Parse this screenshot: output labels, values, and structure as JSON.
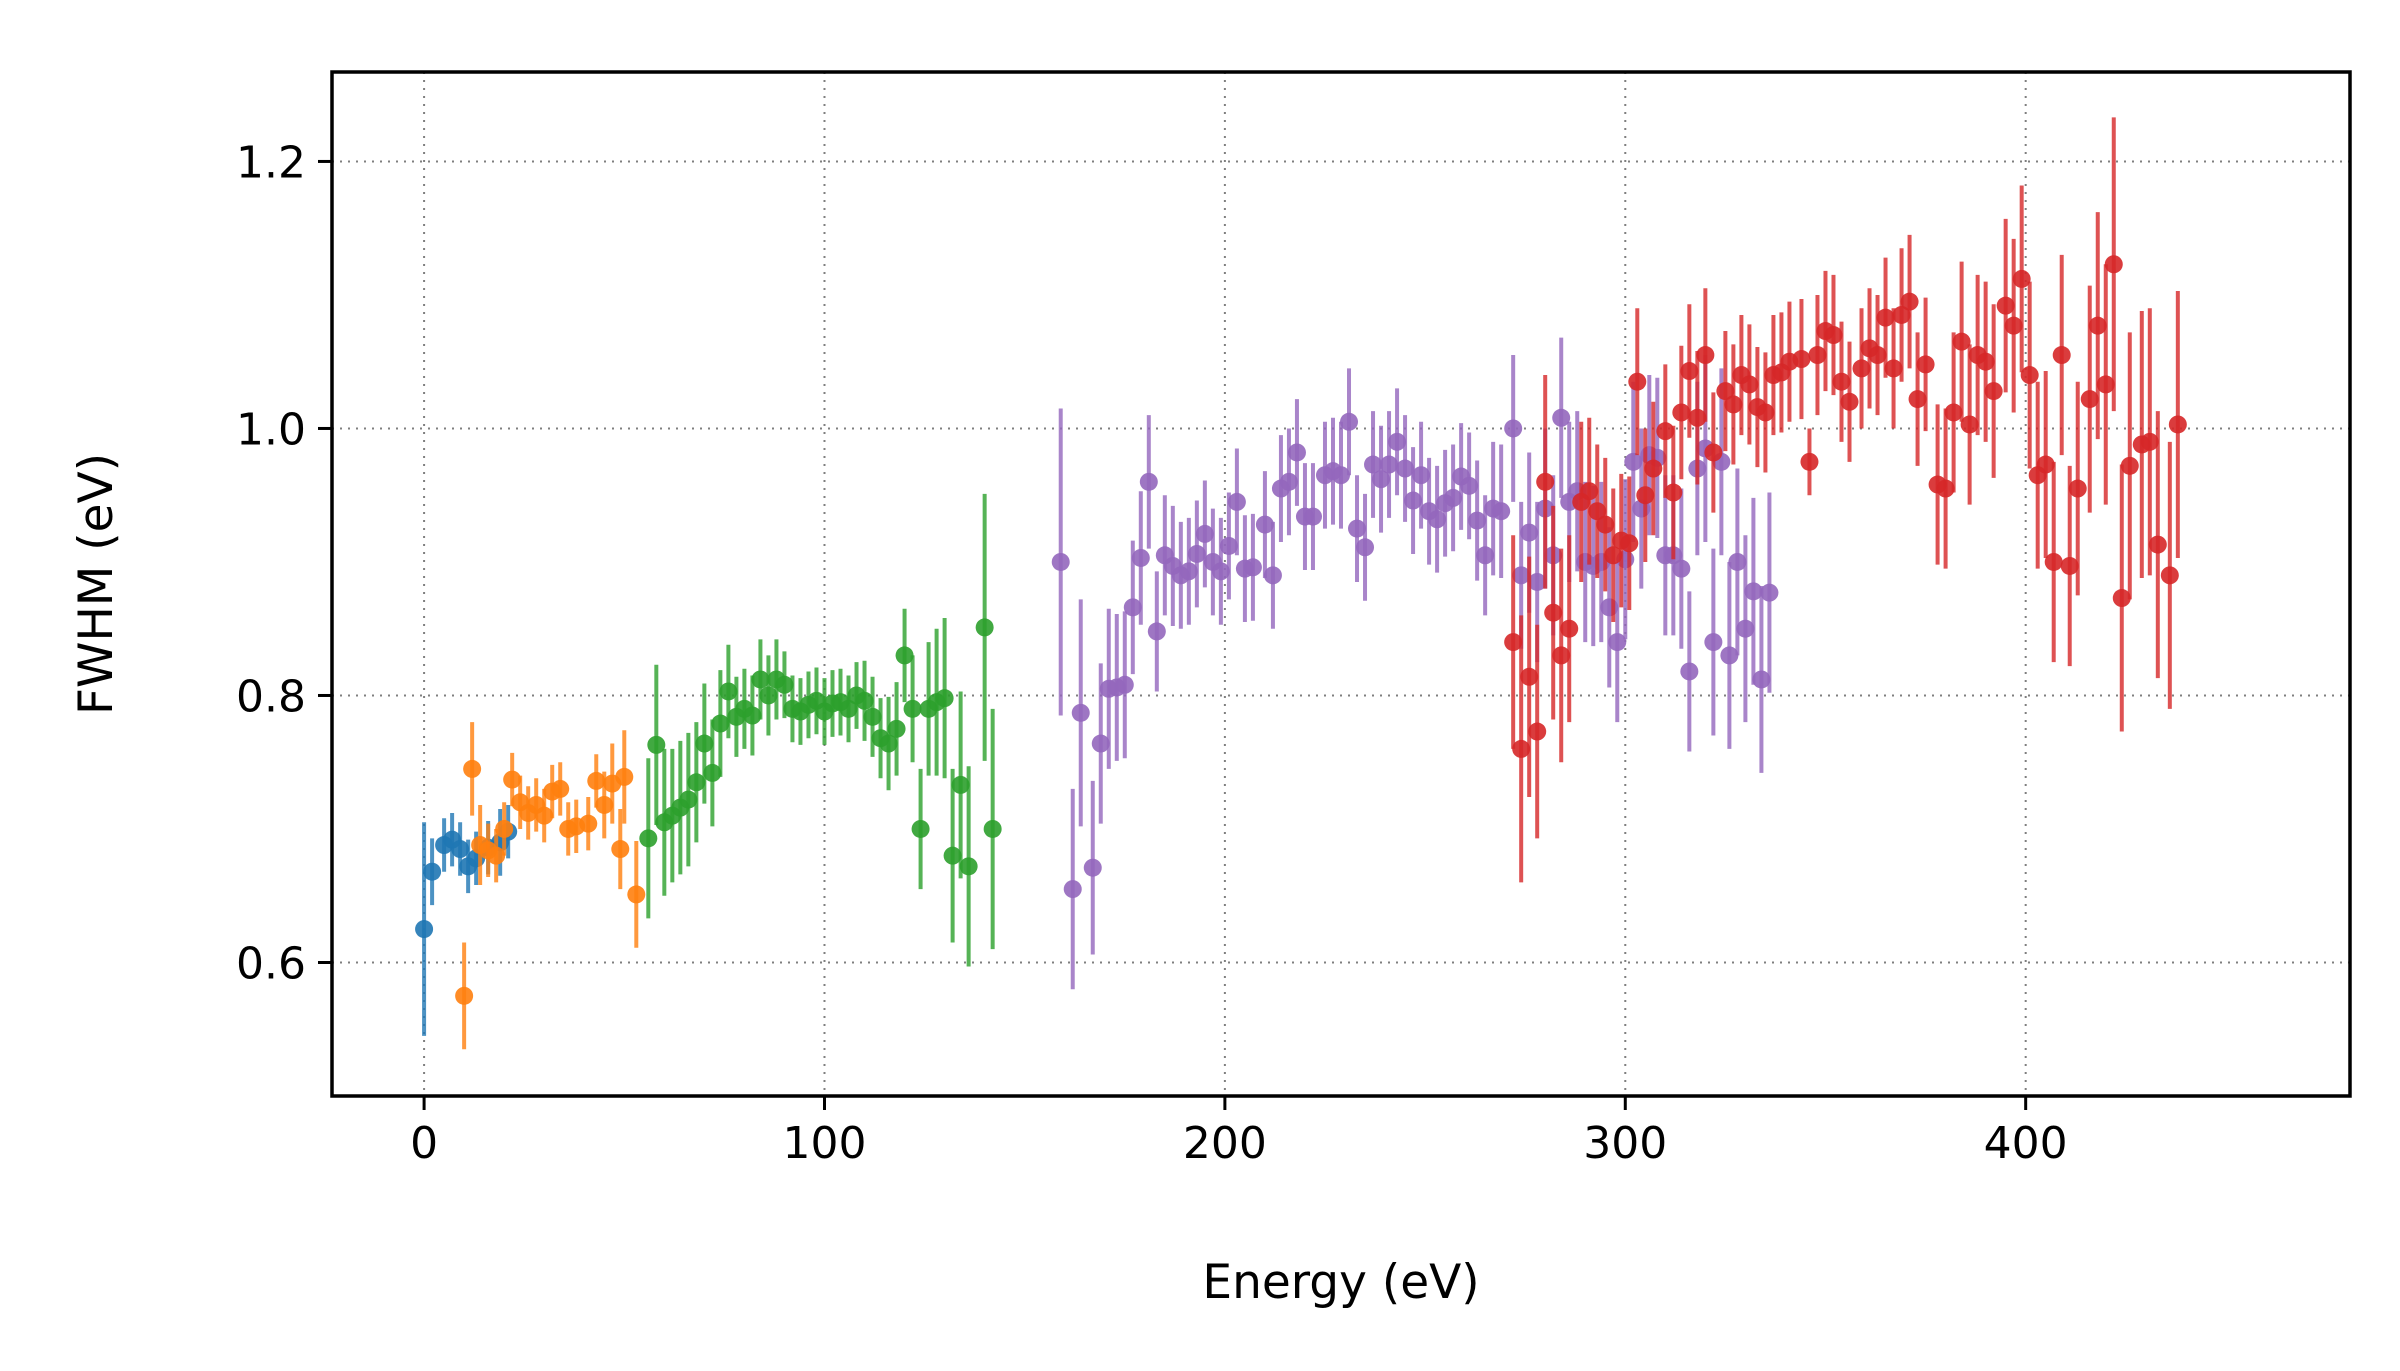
{
  "chart_data": {
    "type": "scatter",
    "title": "",
    "xlabel": "Energy (eV)",
    "ylabel": "FWHM (eV)",
    "xlim": [
      -23,
      481
    ],
    "ylim": [
      0.5,
      1.267
    ],
    "x_ticks": [
      0,
      100,
      200,
      300,
      400
    ],
    "y_ticks": [
      0.6,
      0.8,
      1.0,
      1.2
    ],
    "x_tick_labels": [
      "0",
      "100",
      "200",
      "300",
      "400"
    ],
    "y_tick_labels": [
      "0.6",
      "0.8",
      "1.0",
      "1.2"
    ],
    "grid": true,
    "series": [
      {
        "name": "series-1",
        "color": "#1f77b4",
        "points": [
          [
            0,
            0.625,
            0.08
          ],
          [
            2,
            0.668,
            0.025
          ],
          [
            5,
            0.688,
            0.02
          ],
          [
            7,
            0.692,
            0.02
          ],
          [
            9,
            0.685,
            0.02
          ],
          [
            11,
            0.672,
            0.02
          ],
          [
            13,
            0.678,
            0.02
          ],
          [
            16,
            0.686,
            0.02
          ],
          [
            19,
            0.69,
            0.025
          ],
          [
            21,
            0.698,
            0.02
          ]
        ]
      },
      {
        "name": "series-2",
        "color": "#ff7f0e",
        "points": [
          [
            10,
            0.575,
            0.04
          ],
          [
            12,
            0.745,
            0.035
          ],
          [
            14,
            0.688,
            0.03
          ],
          [
            16,
            0.684,
            0.02
          ],
          [
            18,
            0.68,
            0.02
          ],
          [
            20,
            0.7,
            0.02
          ],
          [
            22,
            0.737,
            0.02
          ],
          [
            24,
            0.72,
            0.02
          ],
          [
            26,
            0.712,
            0.02
          ],
          [
            28,
            0.718,
            0.02
          ],
          [
            30,
            0.71,
            0.02
          ],
          [
            32,
            0.728,
            0.02
          ],
          [
            34,
            0.73,
            0.02
          ],
          [
            36,
            0.7,
            0.02
          ],
          [
            38,
            0.702,
            0.02
          ],
          [
            41,
            0.704,
            0.02
          ],
          [
            43,
            0.736,
            0.02
          ],
          [
            45,
            0.718,
            0.025
          ],
          [
            47,
            0.734,
            0.03
          ],
          [
            49,
            0.685,
            0.03
          ],
          [
            50,
            0.739,
            0.035
          ],
          [
            53,
            0.651,
            0.04
          ]
        ]
      },
      {
        "name": "series-3",
        "color": "#2ca02c",
        "points": [
          [
            56,
            0.693,
            0.06
          ],
          [
            58,
            0.763,
            0.06
          ],
          [
            60,
            0.705,
            0.055
          ],
          [
            62,
            0.71,
            0.05
          ],
          [
            64,
            0.716,
            0.05
          ],
          [
            66,
            0.722,
            0.05
          ],
          [
            68,
            0.735,
            0.045
          ],
          [
            70,
            0.764,
            0.045
          ],
          [
            72,
            0.742,
            0.04
          ],
          [
            74,
            0.779,
            0.04
          ],
          [
            76,
            0.803,
            0.035
          ],
          [
            78,
            0.784,
            0.03
          ],
          [
            80,
            0.79,
            0.03
          ],
          [
            82,
            0.785,
            0.03
          ],
          [
            84,
            0.812,
            0.03
          ],
          [
            86,
            0.8,
            0.03
          ],
          [
            88,
            0.812,
            0.03
          ],
          [
            90,
            0.808,
            0.025
          ],
          [
            92,
            0.79,
            0.025
          ],
          [
            94,
            0.788,
            0.025
          ],
          [
            96,
            0.793,
            0.025
          ],
          [
            98,
            0.796,
            0.025
          ],
          [
            100,
            0.788,
            0.025
          ],
          [
            102,
            0.794,
            0.025
          ],
          [
            104,
            0.795,
            0.025
          ],
          [
            106,
            0.79,
            0.025
          ],
          [
            108,
            0.8,
            0.025
          ],
          [
            110,
            0.796,
            0.03
          ],
          [
            112,
            0.784,
            0.03
          ],
          [
            114,
            0.768,
            0.03
          ],
          [
            116,
            0.764,
            0.035
          ],
          [
            118,
            0.775,
            0.035
          ],
          [
            120,
            0.83,
            0.035
          ],
          [
            122,
            0.79,
            0.04
          ],
          [
            124,
            0.7,
            0.045
          ],
          [
            126,
            0.79,
            0.05
          ],
          [
            128,
            0.795,
            0.055
          ],
          [
            130,
            0.798,
            0.06
          ],
          [
            132,
            0.68,
            0.065
          ],
          [
            134,
            0.733,
            0.07
          ],
          [
            136,
            0.672,
            0.075
          ],
          [
            140,
            0.851,
            0.1
          ],
          [
            142,
            0.7,
            0.09
          ]
        ]
      },
      {
        "name": "series-4",
        "color": "#9467bd",
        "points": [
          [
            159,
            0.9,
            0.115
          ],
          [
            162,
            0.655,
            0.075
          ],
          [
            164,
            0.787,
            0.085
          ],
          [
            167,
            0.671,
            0.065
          ],
          [
            169,
            0.764,
            0.06
          ],
          [
            171,
            0.805,
            0.06
          ],
          [
            173,
            0.806,
            0.055
          ],
          [
            175,
            0.808,
            0.055
          ],
          [
            177,
            0.866,
            0.05
          ],
          [
            179,
            0.903,
            0.05
          ],
          [
            181,
            0.96,
            0.05
          ],
          [
            183,
            0.848,
            0.045
          ],
          [
            185,
            0.905,
            0.045
          ],
          [
            187,
            0.897,
            0.045
          ],
          [
            189,
            0.89,
            0.04
          ],
          [
            191,
            0.893,
            0.04
          ],
          [
            193,
            0.906,
            0.04
          ],
          [
            195,
            0.921,
            0.04
          ],
          [
            197,
            0.9,
            0.04
          ],
          [
            199,
            0.893,
            0.04
          ],
          [
            201,
            0.912,
            0.04
          ],
          [
            203,
            0.945,
            0.04
          ],
          [
            205,
            0.895,
            0.04
          ],
          [
            207,
            0.896,
            0.04
          ],
          [
            210,
            0.928,
            0.04
          ],
          [
            212,
            0.89,
            0.04
          ],
          [
            214,
            0.955,
            0.04
          ],
          [
            216,
            0.96,
            0.04
          ],
          [
            218,
            0.982,
            0.04
          ],
          [
            220,
            0.934,
            0.04
          ],
          [
            222,
            0.934,
            0.04
          ],
          [
            225,
            0.965,
            0.04
          ],
          [
            227,
            0.968,
            0.04
          ],
          [
            229,
            0.965,
            0.04
          ],
          [
            231,
            1.005,
            0.04
          ],
          [
            233,
            0.925,
            0.04
          ],
          [
            235,
            0.911,
            0.04
          ],
          [
            237,
            0.973,
            0.04
          ],
          [
            239,
            0.962,
            0.04
          ],
          [
            241,
            0.973,
            0.04
          ],
          [
            243,
            0.99,
            0.04
          ],
          [
            245,
            0.97,
            0.04
          ],
          [
            247,
            0.946,
            0.04
          ],
          [
            249,
            0.965,
            0.04
          ],
          [
            251,
            0.938,
            0.04
          ],
          [
            253,
            0.932,
            0.04
          ],
          [
            255,
            0.944,
            0.04
          ],
          [
            257,
            0.948,
            0.04
          ],
          [
            259,
            0.964,
            0.04
          ],
          [
            261,
            0.957,
            0.04
          ],
          [
            263,
            0.931,
            0.045
          ],
          [
            265,
            0.905,
            0.045
          ],
          [
            267,
            0.94,
            0.05
          ],
          [
            269,
            0.938,
            0.05
          ],
          [
            272,
            1.0,
            0.055
          ],
          [
            274,
            0.89,
            0.055
          ],
          [
            276,
            0.922,
            0.06
          ],
          [
            278,
            0.885,
            0.06
          ],
          [
            280,
            0.94,
            0.06
          ],
          [
            282,
            0.905,
            0.06
          ],
          [
            284,
            1.008,
            0.06
          ],
          [
            286,
            0.945,
            0.06
          ],
          [
            288,
            0.953,
            0.06
          ],
          [
            290,
            0.9,
            0.06
          ],
          [
            292,
            0.897,
            0.06
          ],
          [
            294,
            0.9,
            0.06
          ],
          [
            296,
            0.866,
            0.06
          ],
          [
            298,
            0.84,
            0.06
          ],
          [
            300,
            0.902,
            0.06
          ],
          [
            302,
            0.975,
            0.06
          ],
          [
            304,
            0.94,
            0.06
          ],
          [
            306,
            0.98,
            0.06
          ],
          [
            308,
            0.978,
            0.06
          ],
          [
            310,
            0.905,
            0.06
          ],
          [
            312,
            0.905,
            0.06
          ],
          [
            314,
            0.895,
            0.06
          ],
          [
            316,
            0.818,
            0.06
          ],
          [
            318,
            0.97,
            0.065
          ],
          [
            320,
            0.985,
            0.07
          ],
          [
            322,
            0.84,
            0.07
          ],
          [
            324,
            0.975,
            0.07
          ],
          [
            326,
            0.83,
            0.07
          ],
          [
            328,
            0.9,
            0.07
          ],
          [
            330,
            0.85,
            0.07
          ],
          [
            332,
            0.878,
            0.07
          ],
          [
            334,
            0.812,
            0.07
          ],
          [
            336,
            0.877,
            0.075
          ]
        ]
      },
      {
        "name": "series-5",
        "color": "#d62728",
        "points": [
          [
            272,
            0.84,
            0.08
          ],
          [
            274,
            0.76,
            0.1
          ],
          [
            276,
            0.814,
            0.09
          ],
          [
            278,
            0.773,
            0.08
          ],
          [
            280,
            0.96,
            0.08
          ],
          [
            282,
            0.862,
            0.08
          ],
          [
            284,
            0.83,
            0.08
          ],
          [
            286,
            0.85,
            0.07
          ],
          [
            289,
            0.945,
            0.06
          ],
          [
            291,
            0.953,
            0.055
          ],
          [
            293,
            0.938,
            0.05
          ],
          [
            295,
            0.928,
            0.05
          ],
          [
            297,
            0.905,
            0.05
          ],
          [
            299,
            0.916,
            0.05
          ],
          [
            301,
            0.914,
            0.05
          ],
          [
            303,
            1.035,
            0.055
          ],
          [
            305,
            0.95,
            0.05
          ],
          [
            307,
            0.97,
            0.05
          ],
          [
            310,
            0.998,
            0.05
          ],
          [
            312,
            0.952,
            0.05
          ],
          [
            314,
            1.012,
            0.05
          ],
          [
            316,
            1.043,
            0.05
          ],
          [
            318,
            1.008,
            0.05
          ],
          [
            320,
            1.055,
            0.05
          ],
          [
            322,
            0.982,
            0.045
          ],
          [
            325,
            1.028,
            0.045
          ],
          [
            327,
            1.018,
            0.045
          ],
          [
            329,
            1.04,
            0.045
          ],
          [
            331,
            1.033,
            0.045
          ],
          [
            333,
            1.016,
            0.045
          ],
          [
            335,
            1.012,
            0.045
          ],
          [
            337,
            1.04,
            0.045
          ],
          [
            339,
            1.042,
            0.045
          ],
          [
            341,
            1.05,
            0.045
          ],
          [
            344,
            1.052,
            0.045
          ],
          [
            346,
            0.975,
            0.025
          ],
          [
            348,
            1.055,
            0.045
          ],
          [
            350,
            1.073,
            0.045
          ],
          [
            352,
            1.07,
            0.045
          ],
          [
            354,
            1.035,
            0.045
          ],
          [
            356,
            1.02,
            0.045
          ],
          [
            359,
            1.045,
            0.045
          ],
          [
            361,
            1.06,
            0.045
          ],
          [
            363,
            1.055,
            0.045
          ],
          [
            365,
            1.083,
            0.045
          ],
          [
            367,
            1.045,
            0.045
          ],
          [
            369,
            1.085,
            0.05
          ],
          [
            371,
            1.095,
            0.05
          ],
          [
            373,
            1.022,
            0.05
          ],
          [
            375,
            1.048,
            0.05
          ],
          [
            378,
            0.958,
            0.06
          ],
          [
            380,
            0.955,
            0.06
          ],
          [
            382,
            1.012,
            0.06
          ],
          [
            384,
            1.065,
            0.06
          ],
          [
            386,
            1.003,
            0.06
          ],
          [
            388,
            1.055,
            0.06
          ],
          [
            390,
            1.05,
            0.06
          ],
          [
            392,
            1.028,
            0.065
          ],
          [
            395,
            1.092,
            0.065
          ],
          [
            397,
            1.077,
            0.065
          ],
          [
            399,
            1.112,
            0.07
          ],
          [
            401,
            1.04,
            0.07
          ],
          [
            403,
            0.965,
            0.07
          ],
          [
            405,
            0.973,
            0.07
          ],
          [
            407,
            0.9,
            0.075
          ],
          [
            409,
            1.055,
            0.075
          ],
          [
            411,
            0.897,
            0.075
          ],
          [
            413,
            0.955,
            0.08
          ],
          [
            416,
            1.022,
            0.085
          ],
          [
            418,
            1.077,
            0.085
          ],
          [
            420,
            1.033,
            0.09
          ],
          [
            422,
            1.123,
            0.11
          ],
          [
            424,
            0.873,
            0.1
          ],
          [
            426,
            0.972,
            0.1
          ],
          [
            429,
            0.988,
            0.1
          ],
          [
            431,
            0.99,
            0.1
          ],
          [
            433,
            0.913,
            0.1
          ],
          [
            436,
            0.89,
            0.1
          ],
          [
            438,
            1.003,
            0.1
          ]
        ]
      }
    ]
  }
}
